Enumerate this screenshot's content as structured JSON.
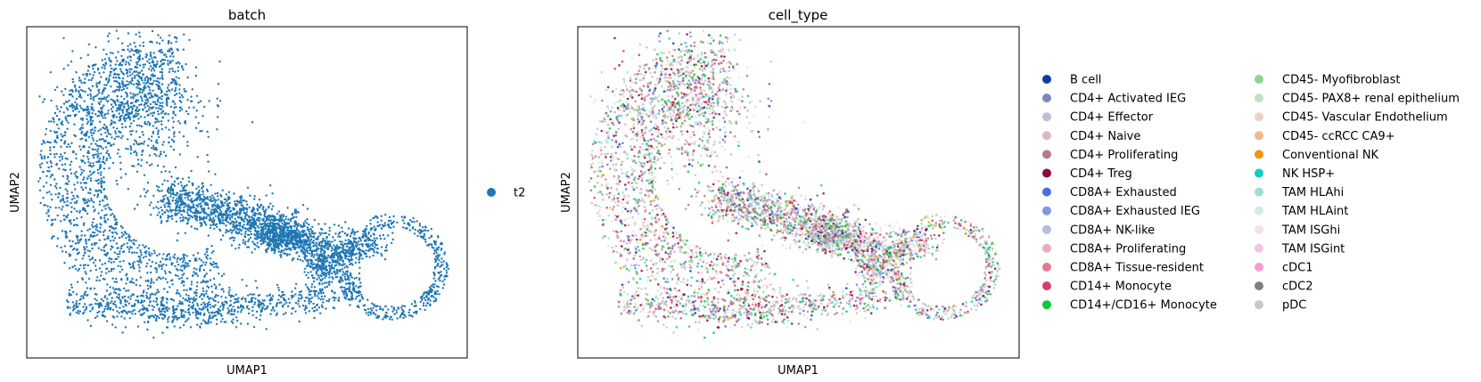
{
  "chart_data": [
    {
      "type": "scatter",
      "title": "batch",
      "xlabel": "UMAP1",
      "ylabel": "UMAP2",
      "xlim": [
        0,
        100
      ],
      "ylim": [
        0,
        100
      ],
      "x_ticks": "none",
      "y_ticks": "none",
      "grid": false,
      "legend_position": "right",
      "series": [
        {
          "name": "t2",
          "color": "#1f77b4"
        }
      ]
    },
    {
      "type": "scatter",
      "title": "cell_type",
      "xlabel": "UMAP1",
      "ylabel": "UMAP2",
      "xlim": [
        0,
        100
      ],
      "ylim": [
        0,
        100
      ],
      "x_ticks": "none",
      "y_ticks": "none",
      "grid": false,
      "legend_position": "right",
      "legend_columns": 2,
      "series": [
        {
          "name": "B cell",
          "color": "#023fa5"
        },
        {
          "name": "CD4+ Activated IEG",
          "color": "#7d87b9"
        },
        {
          "name": "CD4+ Effector",
          "color": "#bec1d4"
        },
        {
          "name": "CD4+ Naive",
          "color": "#d6bcc0"
        },
        {
          "name": "CD4+ Proliferating",
          "color": "#bb7784"
        },
        {
          "name": "CD4+ Treg",
          "color": "#8e063b"
        },
        {
          "name": "CD8A+ Exhausted",
          "color": "#4a6fe3"
        },
        {
          "name": "CD8A+ Exhausted IEG",
          "color": "#8595e1"
        },
        {
          "name": "CD8A+ NK-like",
          "color": "#b5bbe3"
        },
        {
          "name": "CD8A+ Proliferating",
          "color": "#e6afb9"
        },
        {
          "name": "CD8A+ Tissue-resident",
          "color": "#e07b91"
        },
        {
          "name": "CD14+ Monocyte",
          "color": "#d33f6a"
        },
        {
          "name": "CD14+/CD16+ Monocyte",
          "color": "#11c638"
        },
        {
          "name": "CD45- Myofibroblast",
          "color": "#8dd593"
        },
        {
          "name": "CD45- PAX8+ renal epithelium",
          "color": "#c6dec7"
        },
        {
          "name": "CD45- Vascular Endothelium",
          "color": "#ead3c6"
        },
        {
          "name": "CD45- ccRCC CA9+",
          "color": "#f0b98d"
        },
        {
          "name": "Conventional NK",
          "color": "#ef9708"
        },
        {
          "name": "NK HSP+",
          "color": "#0fcfc0"
        },
        {
          "name": "TAM HLAhi",
          "color": "#9cded6"
        },
        {
          "name": "TAM HLAint",
          "color": "#d5eae7"
        },
        {
          "name": "TAM ISGhi",
          "color": "#f3e1eb"
        },
        {
          "name": "TAM ISGint",
          "color": "#f6c4e1"
        },
        {
          "name": "cDC1",
          "color": "#f79cd4"
        },
        {
          "name": "cDC2",
          "color": "#7f7f7f"
        },
        {
          "name": "pDC",
          "color": "#c7c7c7"
        }
      ]
    }
  ]
}
